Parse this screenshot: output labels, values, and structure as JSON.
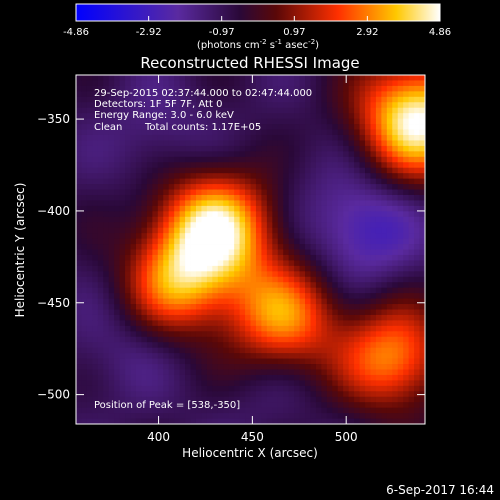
{
  "colorbar": {
    "ticks": [
      "-4.86",
      "-2.92",
      "-0.97",
      "0.97",
      "2.92",
      "4.86"
    ],
    "range": [
      -4.86,
      4.86
    ],
    "units": "(photons cm",
    "units_sup1": "-2",
    "units_mid": " s",
    "units_sup2": "-1",
    "units_end": " asec",
    "units_sup3": "-2",
    "units_close": ")"
  },
  "chart_data": {
    "type": "heatmap",
    "title": "Reconstructed RHESSI Image",
    "xlabel": "Heliocentric X (arcsec)",
    "ylabel": "Heliocentric Y (arcsec)",
    "xlim": [
      356,
      542
    ],
    "ylim": [
      -516,
      -326
    ],
    "x_ticks": [
      400,
      450,
      500
    ],
    "y_ticks": [
      -350,
      -400,
      -450,
      -500
    ],
    "colormap": "blue-purple-red-yellow-white",
    "colorbar_range": [
      -4.86,
      4.86
    ],
    "grid": false,
    "features": [
      {
        "x": 430,
        "y": -410,
        "value": 4.5
      },
      {
        "x": 410,
        "y": -440,
        "value": 2.5
      },
      {
        "x": 538,
        "y": -350,
        "value": 4.86
      },
      {
        "x": 525,
        "y": -480,
        "value": 3.0
      },
      {
        "x": 470,
        "y": -460,
        "value": 1.4
      },
      {
        "x": 510,
        "y": -410,
        "value": -3.0
      },
      {
        "x": 400,
        "y": -360,
        "value": -1.8
      },
      {
        "x": 380,
        "y": -475,
        "value": -1.6
      },
      {
        "x": 455,
        "y": -505,
        "value": -1.2
      },
      {
        "x": 480,
        "y": -380,
        "value": -1.2
      },
      {
        "x": 460,
        "y": -455,
        "value": 0.8
      }
    ]
  },
  "info": {
    "line1": "29-Sep-2015 02:37:44.000 to 02:47:44.000",
    "line2": "Detectors: 1F 5F 7F, Att 0",
    "line3": "Energy Range: 3.0 - 6.0 keV",
    "line4_method": "Clean",
    "line4_counts": "Total counts: 1.17E+05",
    "peak": "Position of Peak = [538,-350]"
  },
  "footer": {
    "timestamp": "6-Sep-2017 16:44"
  }
}
